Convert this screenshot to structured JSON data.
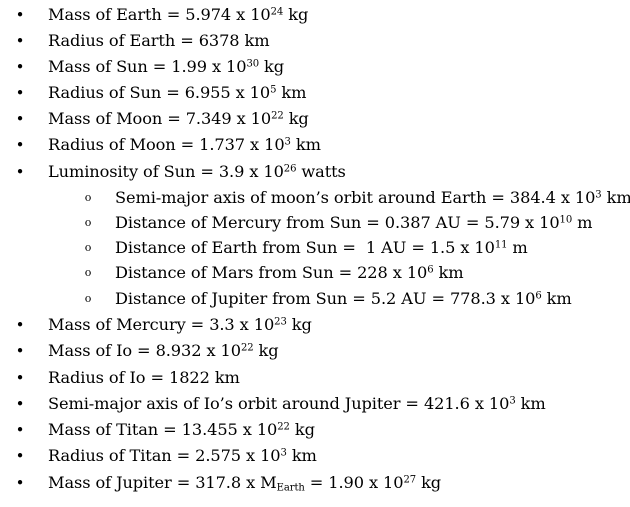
{
  "items": [
    {
      "level": 1,
      "bullet": "•",
      "pre": "Mass of Earth = 5.974 x 10",
      "sup": "24",
      "post": " kg"
    },
    {
      "level": 1,
      "bullet": "•",
      "pre": "Radius of Earth = 6378 km",
      "sup": "",
      "post": ""
    },
    {
      "level": 1,
      "bullet": "•",
      "pre": "Mass of Sun = 1.99 x 10",
      "sup": "30",
      "post": " kg"
    },
    {
      "level": 1,
      "bullet": "•",
      "pre": "Radius of Sun = 6.955 x 10",
      "sup": "5",
      "post": " km"
    },
    {
      "level": 1,
      "bullet": "•",
      "pre": "Mass of Moon = 7.349 x 10",
      "sup": "22",
      "post": " kg"
    },
    {
      "level": 1,
      "bullet": "•",
      "pre": "Radius of Moon = 1.737 x 10",
      "sup": "3",
      "post": " km"
    },
    {
      "level": 1,
      "bullet": "•",
      "pre": "Luminosity of Sun = 3.9 x 10",
      "sup": "26",
      "post": " watts"
    },
    {
      "level": 2,
      "bullet": "o",
      "pre": "Semi-major axis of moon’s orbit around Earth = 384.4 x 10",
      "sup": "3",
      "post": " km"
    },
    {
      "level": 2,
      "bullet": "o",
      "pre": "Distance of Mercury from Sun = 0.387 AU = 5.79 x 10",
      "sup": "10",
      "post": " m"
    },
    {
      "level": 2,
      "bullet": "o",
      "pre": "Distance of Earth from Sun =  1 AU = 1.5 x 10",
      "sup": "11",
      "post": " m"
    },
    {
      "level": 2,
      "bullet": "o",
      "pre": "Distance of Mars from Sun = 228 x 10",
      "sup": "6",
      "post": " km"
    },
    {
      "level": 2,
      "bullet": "o",
      "pre": "Distance of Jupiter from Sun = 5.2 AU = 778.3 x 10",
      "sup": "6",
      "post": " km"
    },
    {
      "level": 1,
      "bullet": "•",
      "pre": "Mass of Mercury = 3.3 x 10",
      "sup": "23",
      "post": " kg"
    },
    {
      "level": 1,
      "bullet": "•",
      "pre": "Mass of Io = 8.932 x 10",
      "sup": "22",
      "post": " kg"
    },
    {
      "level": 1,
      "bullet": "•",
      "pre": "Radius of Io = 1822 km",
      "sup": "",
      "post": ""
    },
    {
      "level": 1,
      "bullet": "•",
      "pre": "Semi-major axis of Io’s orbit around Jupiter = 421.6 x 10",
      "sup": "3",
      "post": " km"
    },
    {
      "level": 1,
      "bullet": "•",
      "pre": "Mass of Titan = 13.455 x 10",
      "sup": "22",
      "post": " kg"
    },
    {
      "level": 1,
      "bullet": "•",
      "pre": "Radius of Titan = 2.575 x 10",
      "sup": "3",
      "post": " km"
    }
  ],
  "last_item": {
    "bullet": "•",
    "pre": "Mass of Jupiter = 317.8 x M",
    "sub": "Earth",
    "mid": " = 1.90 x 10",
    "sup": "27",
    "post": " kg"
  }
}
